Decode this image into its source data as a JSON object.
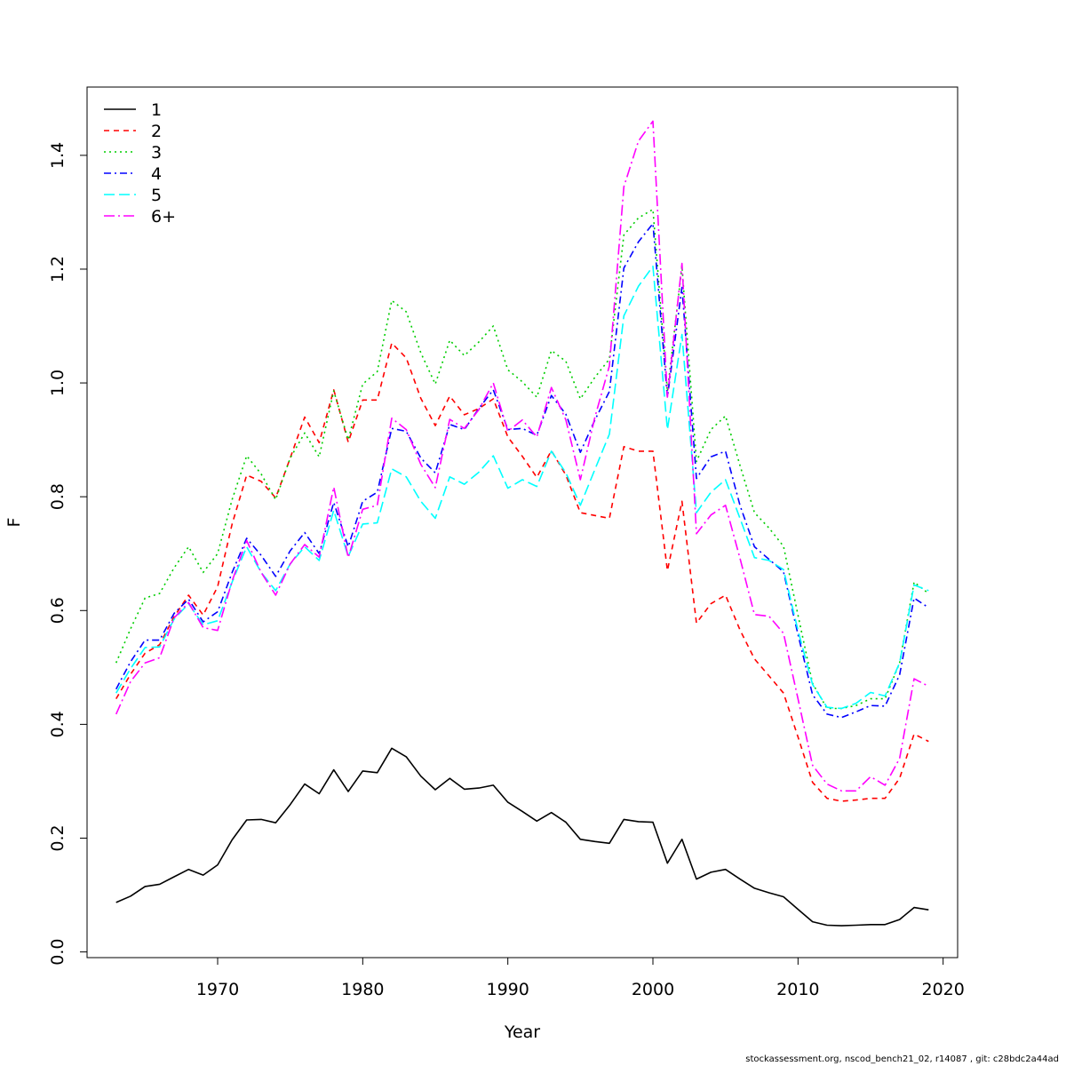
{
  "chart_data": {
    "type": "line",
    "title": "",
    "xlabel": "Year",
    "ylabel": "F",
    "xlim": [
      1961,
      2021
    ],
    "ylim": [
      -0.01,
      1.52
    ],
    "x_ticks": [
      "1970",
      "1980",
      "1990",
      "2000",
      "2010",
      "2020"
    ],
    "y_ticks": [
      "0.0",
      "0.2",
      "0.4",
      "0.6",
      "0.8",
      "1.0",
      "1.2",
      "1.4"
    ],
    "legend_position": "top-left",
    "x": [
      1963,
      1964,
      1965,
      1966,
      1967,
      1968,
      1969,
      1970,
      1971,
      1972,
      1973,
      1974,
      1975,
      1976,
      1977,
      1978,
      1979,
      1980,
      1981,
      1982,
      1983,
      1984,
      1985,
      1986,
      1987,
      1988,
      1989,
      1990,
      1991,
      1992,
      1993,
      1994,
      1995,
      1996,
      1997,
      1998,
      1999,
      2000,
      2001,
      2002,
      2003,
      2004,
      2005,
      2006,
      2007,
      2008,
      2009,
      2010,
      2011,
      2012,
      2013,
      2014,
      2015,
      2016,
      2017,
      2018,
      2019
    ],
    "series": [
      {
        "name": "1",
        "color": "#000000",
        "dash": "",
        "values": [
          0.087,
          0.098,
          0.115,
          0.119,
          0.132,
          0.145,
          0.135,
          0.153,
          0.197,
          0.232,
          0.233,
          0.227,
          0.259,
          0.295,
          0.278,
          0.32,
          0.282,
          0.318,
          0.315,
          0.358,
          0.343,
          0.309,
          0.285,
          0.305,
          0.286,
          0.288,
          0.293,
          0.263,
          0.247,
          0.23,
          0.245,
          0.228,
          0.198,
          0.194,
          0.191,
          0.233,
          0.229,
          0.228,
          0.156,
          0.198,
          0.128,
          0.14,
          0.145,
          0.128,
          0.112,
          0.104,
          0.097,
          0.075,
          0.053,
          0.047,
          0.046,
          0.047,
          0.048,
          0.048,
          0.057,
          0.078,
          0.074
        ]
      },
      {
        "name": "2",
        "color": "#ff0000",
        "dash": "6,5",
        "values": [
          0.445,
          0.488,
          0.525,
          0.54,
          0.589,
          0.627,
          0.592,
          0.642,
          0.752,
          0.838,
          0.827,
          0.798,
          0.868,
          0.94,
          0.895,
          0.988,
          0.896,
          0.97,
          0.97,
          1.07,
          1.044,
          0.973,
          0.925,
          0.977,
          0.944,
          0.955,
          0.972,
          0.905,
          0.871,
          0.834,
          0.881,
          0.838,
          0.772,
          0.767,
          0.762,
          0.888,
          0.88,
          0.88,
          0.67,
          0.792,
          0.578,
          0.612,
          0.627,
          0.566,
          0.515,
          0.485,
          0.455,
          0.378,
          0.298,
          0.27,
          0.265,
          0.267,
          0.27,
          0.27,
          0.305,
          0.383,
          0.37
        ]
      },
      {
        "name": "3",
        "color": "#00cd00",
        "dash": "2,4",
        "values": [
          0.508,
          0.568,
          0.622,
          0.63,
          0.675,
          0.712,
          0.667,
          0.7,
          0.795,
          0.872,
          0.84,
          0.795,
          0.868,
          0.912,
          0.87,
          0.986,
          0.9,
          0.998,
          1.02,
          1.145,
          1.125,
          1.053,
          0.998,
          1.075,
          1.048,
          1.072,
          1.1,
          1.023,
          1.002,
          0.975,
          1.057,
          1.038,
          0.972,
          1.01,
          1.042,
          1.26,
          1.29,
          1.305,
          0.985,
          1.205,
          0.862,
          0.918,
          0.942,
          0.855,
          0.772,
          0.745,
          0.713,
          0.592,
          0.472,
          0.428,
          0.428,
          0.433,
          0.445,
          0.445,
          0.508,
          0.65,
          0.63
        ]
      },
      {
        "name": "4",
        "color": "#0000ff",
        "dash": "8,4,2,4",
        "values": [
          0.462,
          0.51,
          0.548,
          0.548,
          0.595,
          0.62,
          0.58,
          0.598,
          0.667,
          0.727,
          0.697,
          0.66,
          0.705,
          0.737,
          0.7,
          0.79,
          0.712,
          0.792,
          0.808,
          0.92,
          0.915,
          0.868,
          0.842,
          0.927,
          0.918,
          0.955,
          0.988,
          0.918,
          0.92,
          0.908,
          0.978,
          0.945,
          0.878,
          0.935,
          0.985,
          1.202,
          1.248,
          1.28,
          0.975,
          1.168,
          0.832,
          0.87,
          0.88,
          0.785,
          0.712,
          0.69,
          0.668,
          0.558,
          0.452,
          0.418,
          0.412,
          0.422,
          0.433,
          0.432,
          0.487,
          0.622,
          0.605
        ]
      },
      {
        "name": "5",
        "color": "#00ffff",
        "dash": "12,5",
        "values": [
          0.455,
          0.498,
          0.535,
          0.536,
          0.585,
          0.612,
          0.575,
          0.582,
          0.65,
          0.712,
          0.667,
          0.635,
          0.682,
          0.712,
          0.688,
          0.776,
          0.695,
          0.752,
          0.754,
          0.849,
          0.835,
          0.792,
          0.762,
          0.835,
          0.822,
          0.843,
          0.872,
          0.815,
          0.83,
          0.818,
          0.88,
          0.842,
          0.785,
          0.848,
          0.91,
          1.118,
          1.17,
          1.205,
          0.918,
          1.085,
          0.772,
          0.808,
          0.83,
          0.762,
          0.693,
          0.688,
          0.672,
          0.565,
          0.47,
          0.43,
          0.428,
          0.437,
          0.456,
          0.45,
          0.508,
          0.645,
          0.635
        ]
      },
      {
        "name": "6+",
        "color": "#ff00ff",
        "dash": "12,4,2,4",
        "values": [
          0.418,
          0.475,
          0.508,
          0.517,
          0.587,
          0.614,
          0.57,
          0.565,
          0.652,
          0.723,
          0.667,
          0.627,
          0.682,
          0.716,
          0.694,
          0.817,
          0.693,
          0.778,
          0.785,
          0.938,
          0.918,
          0.857,
          0.816,
          0.936,
          0.92,
          0.953,
          1.0,
          0.915,
          0.935,
          0.905,
          0.992,
          0.935,
          0.83,
          0.94,
          1.03,
          1.345,
          1.425,
          1.46,
          0.975,
          1.21,
          0.735,
          0.768,
          0.785,
          0.692,
          0.593,
          0.59,
          0.56,
          0.445,
          0.328,
          0.295,
          0.283,
          0.283,
          0.308,
          0.293,
          0.34,
          0.48,
          0.467
        ]
      }
    ]
  },
  "footer": {
    "text": "stockassessment.org, nscod_bench21_02, r14087 , git: c28bdc2a44ad"
  }
}
